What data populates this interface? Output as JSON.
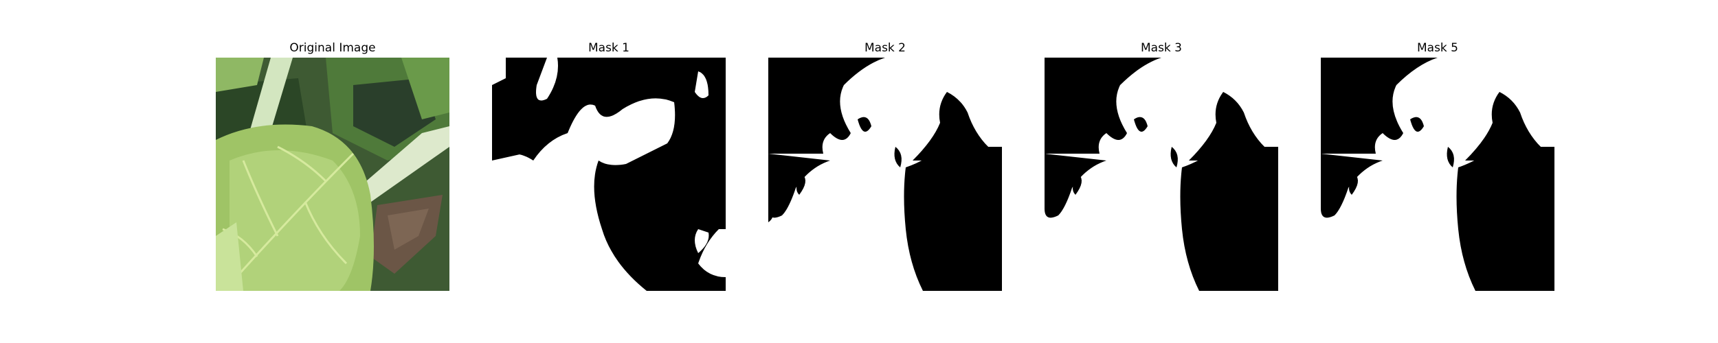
{
  "figure": {
    "panels": [
      {
        "title": "Original Image",
        "kind": "photo"
      },
      {
        "title": "Mask 1",
        "kind": "mask"
      },
      {
        "title": "Mask 2",
        "kind": "mask"
      },
      {
        "title": "Mask 3",
        "kind": "mask"
      },
      {
        "title": "Mask 5",
        "kind": "mask"
      }
    ],
    "colors": {
      "mask_foreground": "#ffffff",
      "mask_background": "#000000",
      "leaf_light": "#a9cc6e",
      "leaf_dark": "#2f4a2a",
      "stem": "#d9e8c4",
      "dry_leaf": "#6b5646"
    }
  }
}
